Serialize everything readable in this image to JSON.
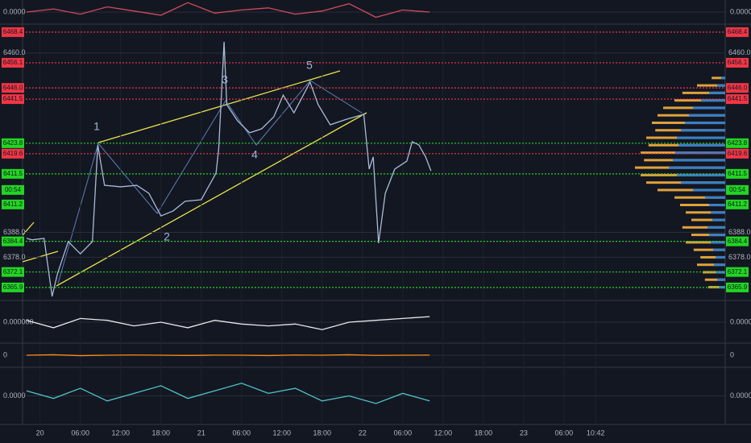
{
  "chart_data": [
    {
      "type": "line",
      "color": "#a9bbd8",
      "x": [
        -2.0,
        -1.2,
        0.6,
        1.8,
        2.6,
        4.2,
        6.0,
        7.8,
        8.6,
        9.6,
        12.0,
        14.4,
        16.2,
        18.0,
        19.8,
        21.6,
        24.0,
        26.2,
        26.6,
        27.4,
        27.8,
        29.4,
        31.2,
        33.0,
        34.8,
        36.2,
        37.8,
        40.2,
        41.4,
        43.2,
        45.6,
        48.2,
        49.0,
        49.6,
        50.4,
        51.4,
        52.8,
        54.6,
        55.4,
        56.4,
        57.4,
        58.2
      ],
      "values": [
        6385.6,
        6385.0,
        6385.6,
        6362.3,
        6371.4,
        6384.3,
        6379.4,
        6384.3,
        6423.1,
        6406.9,
        6406.3,
        6406.9,
        6403.7,
        6394.6,
        6396.6,
        6400.5,
        6401.1,
        6411.8,
        6421.5,
        6464.5,
        6439.3,
        6432.8,
        6428.0,
        6429.6,
        6434.4,
        6443.1,
        6436.0,
        6448.3,
        6439.3,
        6431.2,
        6433.4,
        6435.4,
        6413.4,
        6418.3,
        6383.7,
        6403.7,
        6413.4,
        6416.6,
        6424.4,
        6423.1,
        6418.3,
        6412.7
      ],
      "xlim": [
        -2.6,
        102
      ],
      "ylim": [
        6361,
        6471.6
      ],
      "xticks": [
        {
          "value": 0,
          "label": "20"
        },
        {
          "value": 6,
          "label": "06:00"
        },
        {
          "value": 12,
          "label": "12:00"
        },
        {
          "value": 18,
          "label": "18:00"
        },
        {
          "value": 24,
          "label": "21"
        },
        {
          "value": 30,
          "label": "06:00"
        },
        {
          "value": 36,
          "label": "12:00"
        },
        {
          "value": 42,
          "label": "18:00"
        },
        {
          "value": 48,
          "label": "22"
        },
        {
          "value": 54,
          "label": "06:00"
        },
        {
          "value": 60,
          "label": "12:00"
        },
        {
          "value": 66,
          "label": "18:00"
        },
        {
          "value": 72,
          "label": "23"
        },
        {
          "value": 78,
          "label": "06:00"
        },
        {
          "value": 82.7,
          "label": "10:42"
        }
      ],
      "yticks": [
        {
          "value": 6460,
          "label": "6460.0"
        },
        {
          "value": 6388,
          "label": "6388.0"
        },
        {
          "value": 6378,
          "label": "6378.0"
        }
      ],
      "grid": true,
      "levels": [
        {
          "value": 6468.4,
          "color": "#f23645"
        },
        {
          "value": 6456.1,
          "color": "#f23645"
        },
        {
          "value": 6446,
          "label": "6446.0",
          "color": "#f23645"
        },
        {
          "value": 6441.5,
          "color": "#f23645"
        },
        {
          "value": 6423.8,
          "color": "#22d622"
        },
        {
          "value": 6419.6,
          "color": "#f23645"
        },
        {
          "value": 6411.5,
          "color": "#22d622"
        },
        {
          "value": 6384.4,
          "color": "#22d622"
        },
        {
          "value": 6372.1,
          "color": "#22d622"
        },
        {
          "value": 6365.9,
          "color": "#22d622"
        }
      ],
      "countdown": "00:54",
      "last_price": 6411.2,
      "wave_labels": [
        "1",
        "2",
        "3",
        "4",
        "5"
      ],
      "volume_profile": {
        "prices": [
          6366,
          6369,
          6372,
          6375,
          6378,
          6381,
          6384,
          6387,
          6390,
          6393,
          6396,
          6399,
          6402,
          6405,
          6408,
          6411,
          6414,
          6417,
          6420,
          6423,
          6426,
          6429,
          6432,
          6435,
          6438,
          6441,
          6444,
          6447,
          6450
        ],
        "values": [
          8,
          10,
          12,
          14,
          12,
          15,
          18,
          20,
          22,
          16,
          18,
          20,
          25,
          40,
          55,
          60,
          70,
          65,
          62,
          58,
          60,
          55,
          50,
          45,
          40,
          30,
          20,
          10,
          5
        ],
        "color": "#2a7bd1",
        "delta": [
          15,
          18,
          20,
          25,
          22,
          28,
          35,
          30,
          38,
          30,
          35,
          40,
          45,
          60,
          70,
          75,
          80,
          72,
          75,
          68,
          70,
          62,
          65,
          60,
          55,
          45,
          38,
          25,
          12
        ],
        "delta_color": "#e0a23a"
      }
    },
    {
      "type": "line",
      "color": "#d14b5a",
      "ylim": [
        -1,
        1
      ],
      "yticks": [
        {
          "value": 0,
          "label": "0.0000"
        }
      ],
      "x": [
        -2,
        2,
        6,
        10,
        14,
        18,
        22,
        26,
        30,
        34,
        38,
        42,
        46,
        50,
        54,
        58
      ],
      "values": [
        0,
        0.3,
        -0.2,
        0.5,
        0.1,
        -0.3,
        0.9,
        -0.1,
        0.2,
        0.4,
        -0.2,
        0.1,
        0.8,
        -0.5,
        0.2,
        0
      ]
    },
    {
      "type": "line",
      "color": "#e8e8e8",
      "ylim": [
        -1,
        1
      ],
      "yticks": [
        {
          "value": 0,
          "label": "0.000000"
        }
      ],
      "x": [
        -2,
        2,
        6,
        10,
        14,
        18,
        22,
        26,
        30,
        34,
        38,
        42,
        46,
        50,
        54,
        58
      ],
      "values": [
        0.1,
        -0.3,
        0.2,
        0.1,
        -0.2,
        0.0,
        -0.3,
        0.1,
        -0.1,
        -0.2,
        -0.1,
        -0.4,
        0.0,
        0.1,
        0.2,
        0.3
      ]
    },
    {
      "type": "line",
      "color": "#ff8c1a",
      "ylim": [
        -1,
        1
      ],
      "yticks": [
        0
      ],
      "x": [
        -2,
        2,
        6,
        10,
        14,
        18,
        22,
        26,
        30,
        34,
        38,
        42,
        46,
        50,
        54,
        58
      ],
      "values": [
        0,
        0.05,
        -0.05,
        0,
        0.02,
        0,
        -0.03,
        0.01,
        0,
        -0.04,
        0.02,
        0,
        0.05,
        -0.02,
        0,
        0.01
      ]
    },
    {
      "type": "line",
      "color": "#4fc3c7",
      "ylim": [
        -1,
        1
      ],
      "yticks": [
        {
          "value": 0,
          "label": "0.0000"
        }
      ],
      "x": [
        -2,
        2,
        6,
        10,
        14,
        18,
        22,
        26,
        30,
        34,
        38,
        42,
        46,
        50,
        54,
        58
      ],
      "values": [
        0.2,
        -0.1,
        0.3,
        -0.2,
        0.1,
        0.4,
        -0.1,
        0.2,
        0.5,
        0.1,
        0.3,
        -0.2,
        0.0,
        -0.3,
        0.1,
        -0.2
      ]
    }
  ]
}
